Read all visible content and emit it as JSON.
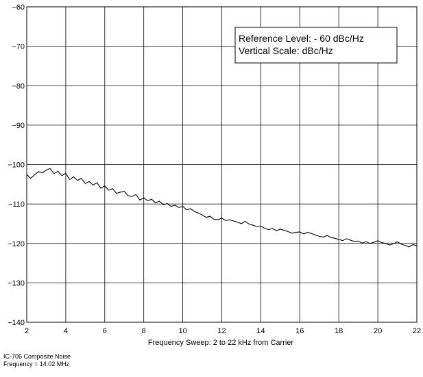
{
  "chart_data": {
    "type": "line",
    "title": "",
    "xlabel": "Frequency Sweep: 2 to 22 kHz from Carrier",
    "ylabel": "",
    "xlim": [
      2,
      22
    ],
    "ylim": [
      -140,
      -60
    ],
    "grid": true,
    "x_ticks": [
      2,
      4,
      6,
      8,
      10,
      12,
      14,
      16,
      18,
      20,
      22
    ],
    "y_ticks": [
      -60,
      -70,
      -80,
      -90,
      -100,
      -110,
      -120,
      -130,
      -140
    ],
    "x_tick_labels": [
      "2",
      "4",
      "6",
      "8",
      "10",
      "12",
      "14",
      "16",
      "18",
      "20",
      "22"
    ],
    "y_tick_labels": [
      "−60",
      "−70",
      "−80",
      "−90",
      "−100",
      "−110",
      "−120",
      "−130",
      "−140"
    ],
    "annotations": [
      "Reference Level: - 60 dBc/Hz",
      "Vertical Scale: dBc/Hz"
    ],
    "series": [
      {
        "x": [
          2.0,
          2.2,
          2.4,
          2.6,
          2.8,
          3.0,
          3.2,
          3.4,
          3.6,
          3.8,
          4.0,
          4.2,
          4.4,
          4.6,
          4.8,
          5.0,
          5.2,
          5.4,
          5.6,
          5.8,
          6.0,
          6.2,
          6.4,
          6.6,
          6.8,
          7.0,
          7.2,
          7.4,
          7.6,
          7.8,
          8.0,
          8.2,
          8.4,
          8.6,
          8.8,
          9.0,
          9.2,
          9.4,
          9.6,
          9.8,
          10.0,
          10.2,
          10.4,
          10.6,
          10.8,
          11.0,
          11.2,
          11.4,
          11.6,
          11.8,
          12.0,
          12.2,
          12.4,
          12.6,
          12.8,
          13.0,
          13.2,
          13.4,
          13.6,
          13.8,
          14.0,
          14.2,
          14.4,
          14.6,
          14.8,
          15.0,
          15.2,
          15.4,
          15.6,
          15.8,
          16.0,
          16.2,
          16.4,
          16.6,
          16.8,
          17.0,
          17.2,
          17.4,
          17.6,
          17.8,
          18.0,
          18.2,
          18.4,
          18.6,
          18.8,
          19.0,
          19.2,
          19.4,
          19.6,
          19.8,
          20.0,
          20.2,
          20.4,
          20.6,
          20.8,
          21.0,
          21.2,
          21.4,
          21.6,
          21.8,
          22.0
        ],
        "values": [
          -102.5,
          -103.5,
          -102.6,
          -101.8,
          -102.1,
          -101.4,
          -101.0,
          -102.3,
          -101.7,
          -102.8,
          -102.2,
          -103.8,
          -103.1,
          -104.0,
          -103.5,
          -104.8,
          -104.3,
          -105.2,
          -104.6,
          -106.0,
          -105.4,
          -106.5,
          -106.1,
          -107.3,
          -107.0,
          -106.8,
          -107.9,
          -108.1,
          -107.6,
          -109.0,
          -108.4,
          -109.2,
          -108.8,
          -109.7,
          -109.3,
          -110.2,
          -109.9,
          -110.6,
          -110.3,
          -110.9,
          -110.6,
          -111.5,
          -111.2,
          -111.9,
          -112.3,
          -112.8,
          -113.4,
          -113.1,
          -113.9,
          -114.0,
          -113.6,
          -114.2,
          -114.0,
          -114.3,
          -114.6,
          -115.0,
          -114.4,
          -115.1,
          -115.4,
          -115.7,
          -115.6,
          -116.2,
          -116.5,
          -116.2,
          -116.8,
          -116.4,
          -116.7,
          -117.0,
          -117.4,
          -117.2,
          -117.1,
          -117.6,
          -117.2,
          -117.5,
          -117.9,
          -118.2,
          -118.4,
          -118.0,
          -118.5,
          -118.7,
          -119.0,
          -119.3,
          -118.8,
          -119.2,
          -119.5,
          -119.4,
          -119.9,
          -119.6,
          -120.0,
          -119.7,
          -119.3,
          -119.8,
          -120.0,
          -120.4,
          -120.1,
          -119.6,
          -120.2,
          -120.5,
          -120.9,
          -120.3,
          -120.6
        ]
      }
    ]
  },
  "captions": {
    "line1": "IC-706 Composite Noise",
    "line2": "Frequency = 14.02 MHz"
  },
  "colors": {
    "line": "#000000",
    "grid": "#000000",
    "background": "#ffffff"
  }
}
